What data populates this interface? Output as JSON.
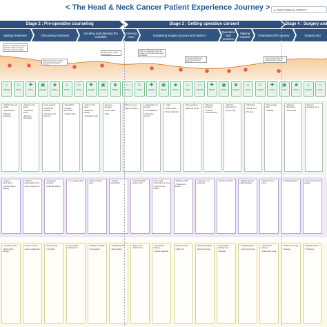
{
  "header": {
    "title": "< The Head & Neck Cancer Patient Experience Journey >",
    "functional_badge": "● FUNCTIONAL ASPECT"
  },
  "stages": [
    {
      "label": "Stage 2 : Pre-operative counseling"
    },
    {
      "label": "Stage 3 : Getting operation consent"
    },
    {
      "label": "Stage 4 : Surgery and"
    }
  ],
  "steps": [
    {
      "label": "Waiting treatment"
    },
    {
      "label": "Discussing treatment"
    },
    {
      "label": "Deciding and planning the schedule"
    },
    {
      "label": "Entering room"
    },
    {
      "label": "Explaining surgery process and method"
    },
    {
      "label": "Questions and answers"
    },
    {
      "label": "Signing consent"
    },
    {
      "label": "Hospitalized for surgery"
    },
    {
      "label": "Surgery and"
    }
  ],
  "quotes": [
    {
      "text": "I have to decide the surgery date but I had no time to compare other hospitals."
    },
    {
      "text": "Worried about the surgery schedule and things to prepare."
    },
    {
      "text": "Is the surgery really necessary?"
    },
    {
      "text": "I did not understand what the surgery is and what was being explained."
    },
    {
      "text": "I had questions but I was not answered enough."
    },
    {
      "text": "I was worried about the outcome after surgery."
    }
  ],
  "touchpoints": [
    {
      "label": "Hospital"
    },
    {
      "label": "Doctor"
    },
    {
      "label": "Nurse"
    },
    {
      "label": "Hospital"
    },
    {
      "label": "Patient"
    },
    {
      "label": "Doctor"
    },
    {
      "label": "Nurse"
    },
    {
      "label": "Hospital"
    },
    {
      "label": "Consent"
    },
    {
      "label": "Patient"
    },
    {
      "label": "Doctor"
    },
    {
      "label": "Nurse"
    },
    {
      "label": "Hospital"
    },
    {
      "label": "Patient"
    },
    {
      "label": "Doctor"
    },
    {
      "label": "Nurse"
    },
    {
      "label": "Hospital"
    },
    {
      "label": "Patient"
    },
    {
      "label": "Doctor"
    },
    {
      "label": "Hospital"
    },
    {
      "label": "Nurse"
    },
    {
      "label": "Hospital"
    },
    {
      "label": "Doctor"
    },
    {
      "label": "Nurse"
    },
    {
      "label": "Patient"
    },
    {
      "label": "Hospital"
    },
    {
      "label": "Nurse"
    }
  ],
  "actions": [
    [
      "Wait for the test results",
      "Feel anxious",
      "Prepare questions"
    ],
    [
      "Listen to the doctor",
      "Check test result",
      "Receive information"
    ],
    [
      "Hear a guide",
      "Check the schedule",
      "Ask about the process"
    ],
    [
      "Hospitalize",
      "Prepare documents",
      "Confirm date"
    ],
    [
      "Listen to the nurse",
      "Receive a booklet",
      "Schedule exam"
    ],
    [
      "Receive message",
      "Check date",
      "Wait"
    ],
    [
      "Move to room",
      "Wait for doctor"
    ],
    [
      "Explanation of surgery",
      "Complications",
      "Recovery period"
    ],
    [
      "Listen",
      "Watch video",
      "Read materials"
    ],
    [
      "Ask questions",
      "Talk with family"
    ],
    [
      "Receive answers",
      "Confirm understanding"
    ],
    [
      "Sign the consent form",
      "Get a copy"
    ],
    [
      "Admission",
      "Check room",
      "Prepare"
    ],
    [
      "Pre-surgery tests",
      "Fasting"
    ],
    [
      "Receive information",
      "Nurse visit"
    ],
    [
      "Move to operating room"
    ]
  ],
  "pains": [
    [
      "Lack of information",
      "Anxiety about waiting"
    ],
    [
      "Hard to understand terms",
      "Not enough time"
    ],
    [
      "Confusing schedule",
      "Difficulty asking"
    ],
    [
      "Long waiting time"
    ],
    [
      "Worried about costs"
    ],
    [
      "Unclear instructions"
    ],
    [
      "Uncomfortable environment"
    ],
    [
      "Too much information at once",
      "Fear of side effects"
    ],
    [
      "Difficult words",
      "Pressure to decide"
    ],
    [
      "Questions not answered"
    ],
    [
      "No time to think"
    ],
    [
      "Signing without understanding"
    ],
    [
      "Worried about result"
    ],
    [
      "Unfamiliar place"
    ],
    [
      "Lack of emotional support"
    ]
  ],
  "opportunities": [
    [
      "Hospital system",
      "Information delivery"
    ],
    [
      "Doctor's effort",
      "Easy explanation"
    ],
    [
      "Nurse guide",
      "Checklist"
    ],
    [
      "Information delivery tool"
    ],
    [
      "Patient's feelings",
      "Counseling"
    ],
    [
      "Hospital system",
      "Reservation"
    ],
    [
      "Space and environment"
    ],
    [
      "Information delivery",
      "Visual materials"
    ],
    [
      "Doctor's effort",
      "Q&A time"
    ],
    [
      "Patient's feelings",
      "Emotional care"
    ],
    [
      "Information delivery tool",
      "Booklet"
    ],
    [
      "Hospital system",
      "Consent process"
    ],
    [
      "Information delivery",
      "Admission guide"
    ],
    [
      "Patient's feelings",
      "Support"
    ],
    [
      "Hospital system",
      "Treatment"
    ]
  ]
}
